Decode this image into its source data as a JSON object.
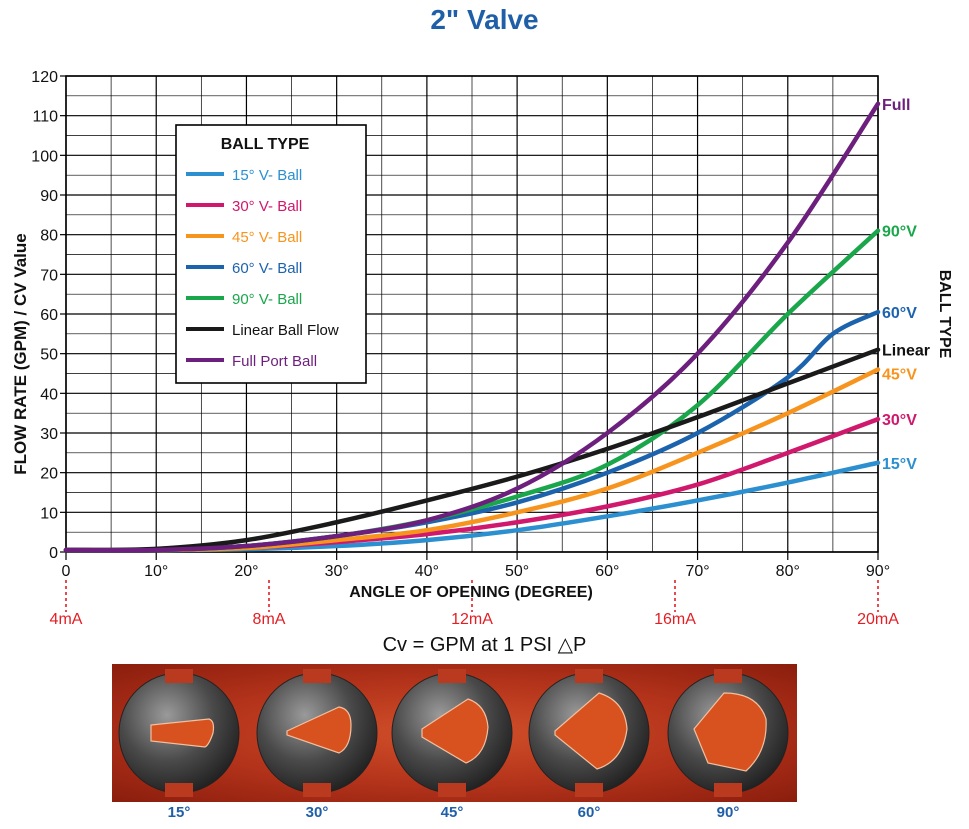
{
  "title": "2\" Valve",
  "caption": "Cv = GPM at 1 PSI △P",
  "chart_data": {
    "type": "line",
    "title": "2\" Valve",
    "xlabel": "ANGLE OF OPENING (DEGREE)",
    "ylabel": "FLOW RATE (GPM) / CV Value",
    "right_label": "BALL TYPE",
    "xlim": [
      0,
      90
    ],
    "ylim": [
      0,
      120
    ],
    "x_ticks": [
      0,
      10,
      20,
      30,
      40,
      50,
      60,
      70,
      80,
      90
    ],
    "x_tick_labels": [
      "0",
      "10°",
      "20°",
      "30°",
      "40°",
      "50°",
      "60°",
      "70°",
      "80°",
      "90°"
    ],
    "y_ticks": [
      0,
      10,
      20,
      30,
      40,
      50,
      60,
      70,
      80,
      90,
      100,
      110,
      120
    ],
    "grid": true,
    "legend_title": "BALL TYPE",
    "legend_position": "upper-left",
    "ma_markers": [
      {
        "label": "4mA",
        "x": 0
      },
      {
        "label": "8mA",
        "x": 22.5
      },
      {
        "label": "12mA",
        "x": 45
      },
      {
        "label": "16mA",
        "x": 67.5
      },
      {
        "label": "20mA",
        "x": 90
      }
    ],
    "series": [
      {
        "name": "15° V- Ball",
        "end_label": "15°V",
        "color": "#2b8fd0",
        "x": [
          0,
          10,
          20,
          30,
          40,
          50,
          60,
          70,
          80,
          90
        ],
        "y": [
          0.5,
          0.5,
          0.7,
          1.5,
          3,
          5.5,
          9,
          13,
          17.5,
          22.5
        ]
      },
      {
        "name": "30° V- Ball",
        "end_label": "30°V",
        "color": "#d0186d",
        "x": [
          0,
          10,
          20,
          30,
          40,
          50,
          60,
          70,
          80,
          90
        ],
        "y": [
          0.5,
          0.5,
          1,
          2.5,
          4.5,
          7.5,
          11.5,
          17,
          25,
          33.5
        ]
      },
      {
        "name": "45° V- Ball",
        "end_label": "45°V",
        "color": "#f7941d",
        "x": [
          0,
          10,
          20,
          30,
          40,
          50,
          60,
          70,
          80,
          90
        ],
        "y": [
          0.5,
          0.5,
          1,
          3,
          5.5,
          10,
          16,
          25,
          35,
          46
        ]
      },
      {
        "name": "60° V- Ball",
        "end_label": "60°V",
        "color": "#1c63ae",
        "x": [
          0,
          10,
          20,
          30,
          40,
          50,
          60,
          70,
          80,
          85,
          90
        ],
        "y": [
          0.5,
          0.5,
          1.5,
          4,
          7.5,
          12.5,
          20,
          30,
          44,
          55,
          60.5
        ]
      },
      {
        "name": "90° V- Ball",
        "end_label": "90°V",
        "color": "#1aa64b",
        "x": [
          0,
          10,
          20,
          30,
          40,
          50,
          60,
          70,
          80,
          90
        ],
        "y": [
          0.5,
          0.5,
          1.5,
          4,
          8,
          14,
          22,
          37,
          60,
          81
        ]
      },
      {
        "name": "Linear Ball Flow",
        "end_label": "Linear",
        "color": "#1a1a1a",
        "x": [
          0,
          10,
          20,
          30,
          40,
          50,
          60,
          70,
          80,
          90
        ],
        "y": [
          0.5,
          0.8,
          3,
          7.5,
          13,
          19,
          26,
          34,
          42.5,
          51
        ]
      },
      {
        "name": "Full Port Ball",
        "end_label": "Full",
        "color": "#6d1f7d",
        "x": [
          0,
          10,
          20,
          30,
          40,
          50,
          60,
          70,
          80,
          90
        ],
        "y": [
          0.5,
          0.5,
          1.5,
          4,
          8,
          16,
          30,
          50,
          78,
          113
        ]
      }
    ]
  },
  "photo": {
    "labels": [
      "15°",
      "30°",
      "45°",
      "60°",
      "90°"
    ]
  }
}
